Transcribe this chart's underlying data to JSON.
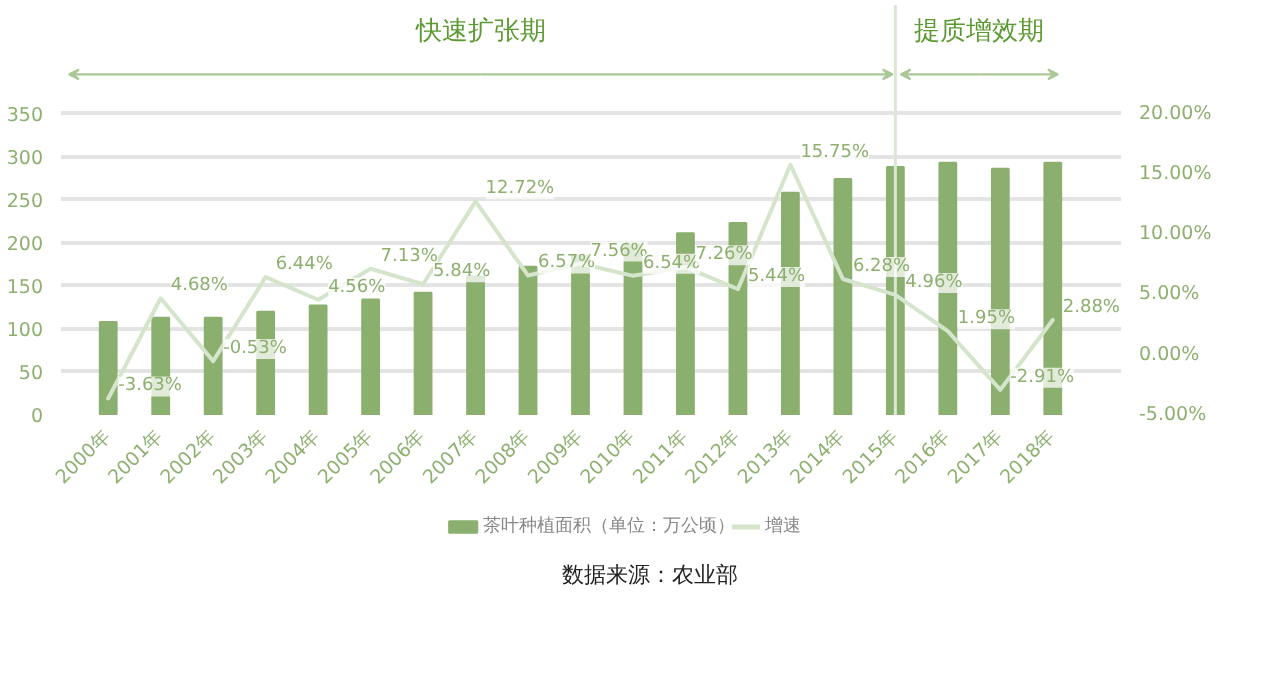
{
  "chart_data": {
    "type": "bar",
    "categories": [
      "2000年",
      "2001年",
      "2002年",
      "2003年",
      "2004年",
      "2005年",
      "2006年",
      "2007年",
      "2008年",
      "2009年",
      "2010年",
      "2011年",
      "2012年",
      "2013年",
      "2014年",
      "2015年",
      "2016年",
      "2017年",
      "2018年"
    ],
    "series": [
      {
        "name": "茶叶种植面积（单位：万公顷）",
        "color": "#8aaf6e",
        "values": [
          108,
          113,
          113,
          120,
          127,
          134,
          142,
          161,
          172,
          185,
          198,
          211,
          223,
          258,
          274,
          288,
          293,
          286,
          293
        ]
      },
      {
        "name": "增速",
        "type": "line",
        "axis": "y2",
        "color": "#d5e5cb",
        "values": [
          -3.63,
          4.68,
          -0.53,
          6.44,
          4.56,
          7.13,
          5.84,
          12.72,
          6.57,
          7.56,
          6.54,
          7.26,
          5.44,
          15.75,
          6.28,
          4.96,
          1.95,
          -2.91,
          2.88
        ],
        "value_labels": [
          "-3.63%",
          "4.68%",
          "-0.53%",
          "6.44%",
          "4.56%",
          "7.13%",
          "5.84%",
          "12.72%",
          "6.57%",
          "7.56%",
          "6.54%",
          "7.26%",
          "5.44%",
          "15.75%",
          "6.28%",
          "4.96%",
          "1.95%",
          "-2.91%",
          "2.88%"
        ]
      }
    ],
    "ylim": [
      0,
      350
    ],
    "yticks": [
      0,
      50,
      100,
      150,
      200,
      250,
      300,
      350
    ],
    "y2lim": [
      -5,
      20
    ],
    "y2ticks": [
      {
        "value": -5,
        "label": "-5.00%"
      },
      {
        "value": 0,
        "label": "0.00%"
      },
      {
        "value": 5,
        "label": "5.00%"
      },
      {
        "value": 10,
        "label": "10.00%"
      },
      {
        "value": 15,
        "label": "15.00%"
      },
      {
        "value": 20,
        "label": "20.00%"
      }
    ],
    "grid": "y",
    "legend": "bottom",
    "marker": "none",
    "line_style": "solid",
    "ref_lines": [
      {
        "axis": "x",
        "value": "2015年",
        "color": "#dde6d5"
      }
    ],
    "annotations": [
      "快速扩张期",
      "提质增效期",
      "数据来源：农业部"
    ]
  }
}
